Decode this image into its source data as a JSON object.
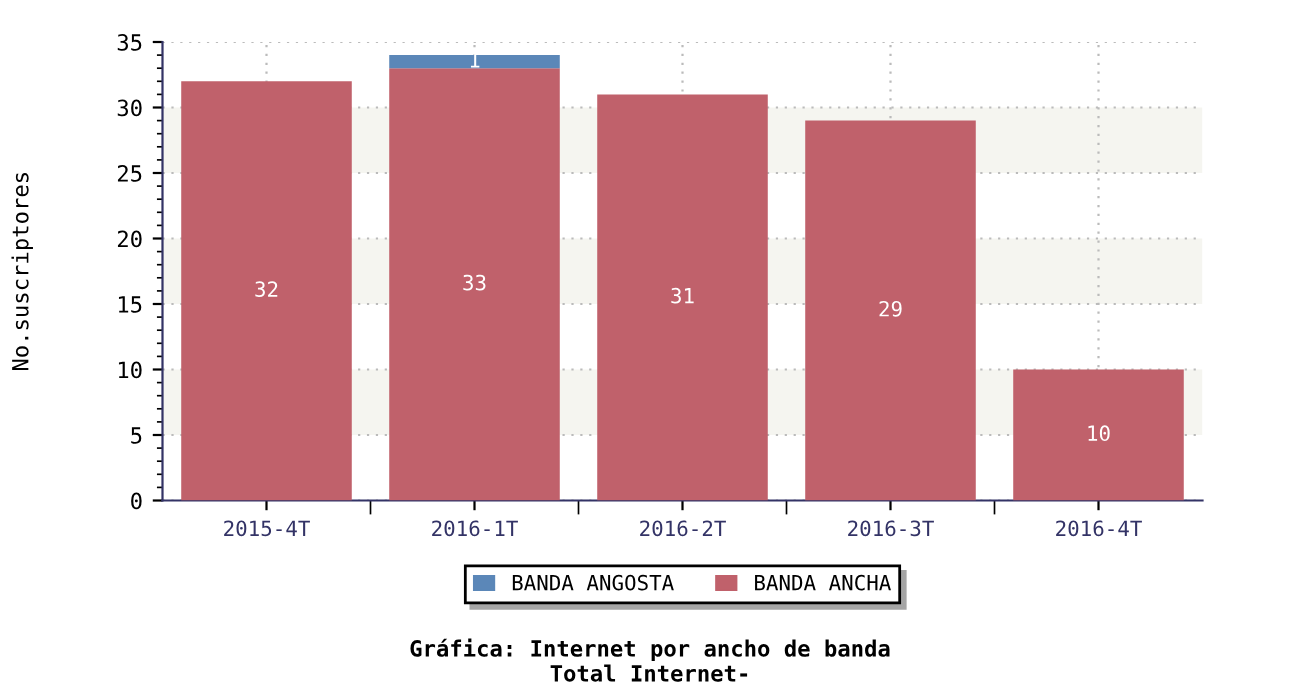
{
  "chart_data": {
    "type": "bar",
    "title": "Gráfica: Internet por ancho de banda\nTotal Internet-",
    "ylabel": "No.suscriptores",
    "categories": [
      "2015-4T",
      "2016-1T",
      "2016-2T",
      "2016-3T",
      "2016-4T"
    ],
    "stacked": true,
    "series": [
      {
        "name": "BANDA ANCHA",
        "color": "#c0616b",
        "values": [
          32,
          33,
          31,
          29,
          10
        ],
        "value_labels": [
          "32",
          "33",
          "31",
          "29",
          "10"
        ]
      },
      {
        "name": "BANDA ANGOSTA",
        "color": "#5b87b8",
        "values": [
          null,
          1,
          null,
          null,
          null
        ],
        "value_labels": [
          null,
          "1",
          null,
          null,
          null
        ]
      }
    ],
    "ylim": [
      0,
      35
    ],
    "yticks": [
      0,
      5,
      10,
      15,
      20,
      25,
      30,
      35
    ],
    "bands": [
      {
        "axis": "y",
        "from": 5,
        "to": 10,
        "color": "#f5f5f0"
      },
      {
        "axis": "y",
        "from": 15,
        "to": 20,
        "color": "#f5f5f0"
      },
      {
        "axis": "y",
        "from": 25,
        "to": 30,
        "color": "#f5f5f0"
      }
    ],
    "grid": true,
    "legend": "bottom"
  }
}
